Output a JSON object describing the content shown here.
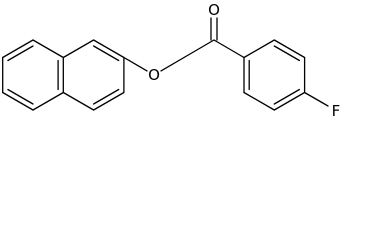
{
  "atoms": {
    "ether_oxygen": "O",
    "carbonyl_oxygen": "O",
    "fluorine": "F"
  }
}
